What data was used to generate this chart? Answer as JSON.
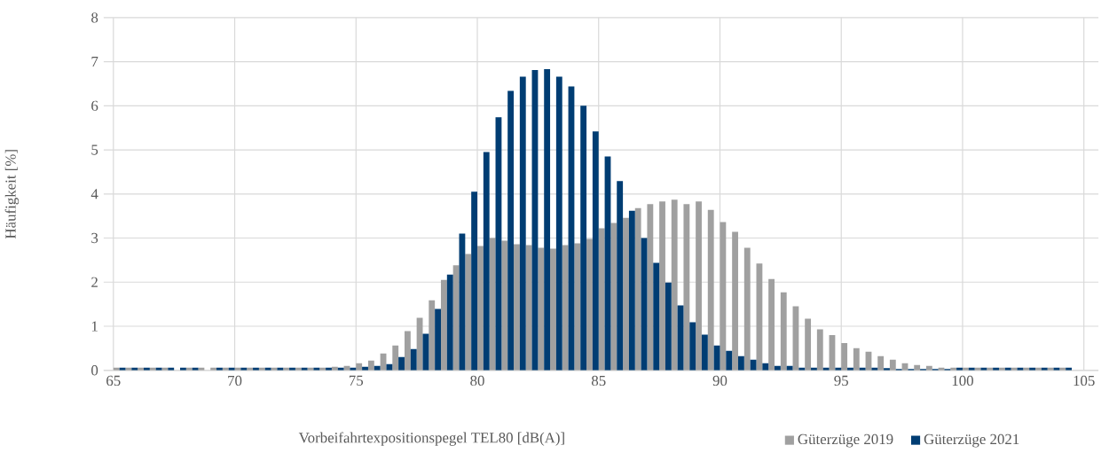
{
  "chart_data": {
    "type": "bar",
    "xlabel": "Vorbeifahrtexpositionspegel TEL80 [dB(A)]",
    "ylabel": "Häufigkeit [%]",
    "x": [
      65.25,
      65.75,
      66.25,
      66.75,
      67.25,
      67.75,
      68.25,
      68.75,
      69.25,
      69.75,
      70.25,
      70.75,
      71.25,
      71.75,
      72.25,
      72.75,
      73.25,
      73.75,
      74.25,
      74.75,
      75.25,
      75.75,
      76.25,
      76.75,
      77.25,
      77.75,
      78.25,
      78.75,
      79.25,
      79.75,
      80.25,
      80.75,
      81.25,
      81.75,
      82.25,
      82.75,
      83.25,
      83.75,
      84.25,
      84.75,
      85.25,
      85.75,
      86.25,
      86.75,
      87.25,
      87.75,
      88.25,
      88.75,
      89.25,
      89.75,
      90.25,
      90.75,
      91.25,
      91.75,
      92.25,
      92.75,
      93.25,
      93.75,
      94.25,
      94.75,
      95.25,
      95.75,
      96.25,
      96.75,
      97.25,
      97.75,
      98.25,
      98.75,
      99.25,
      99.75,
      100.25,
      100.75,
      101.25,
      101.75,
      102.25,
      102.75,
      103.25,
      103.75,
      104.25
    ],
    "series": [
      {
        "name": "Güterzüge 2019",
        "color": "#a0a0a0",
        "values": [
          0.06,
          0.06,
          0.06,
          0.06,
          0.06,
          0,
          0.06,
          0.06,
          0.06,
          0.06,
          0.06,
          0.06,
          0.06,
          0.06,
          0.06,
          0.06,
          0.06,
          0.06,
          0.08,
          0.1,
          0.16,
          0.22,
          0.38,
          0.56,
          0.89,
          1.19,
          1.59,
          2.05,
          2.38,
          2.64,
          2.82,
          3.0,
          2.94,
          2.86,
          2.84,
          2.78,
          2.76,
          2.84,
          2.88,
          2.98,
          3.22,
          3.34,
          3.46,
          3.68,
          3.77,
          3.83,
          3.87,
          3.77,
          3.83,
          3.64,
          3.36,
          3.14,
          2.78,
          2.42,
          2.07,
          1.77,
          1.45,
          1.17,
          0.93,
          0.8,
          0.62,
          0.5,
          0.42,
          0.32,
          0.24,
          0.16,
          0.12,
          0.1,
          0.06,
          0.06,
          0.06,
          0.06,
          0.06,
          0.06,
          0.06,
          0.06,
          0.06,
          0.06,
          0.06
        ]
      },
      {
        "name": "Güterzüge 2021",
        "color": "#003d73",
        "values": [
          0.06,
          0.06,
          0.06,
          0.06,
          0.06,
          0.06,
          0.06,
          0,
          0.06,
          0.06,
          0.06,
          0.06,
          0.06,
          0.06,
          0.06,
          0.06,
          0.06,
          0.06,
          0.06,
          0.06,
          0.08,
          0.1,
          0.14,
          0.3,
          0.48,
          0.83,
          1.39,
          2.17,
          3.1,
          4.05,
          4.95,
          5.74,
          6.34,
          6.66,
          6.81,
          6.83,
          6.66,
          6.44,
          6.0,
          5.42,
          4.85,
          4.29,
          3.62,
          3.0,
          2.44,
          1.99,
          1.47,
          1.09,
          0.81,
          0.56,
          0.44,
          0.32,
          0.24,
          0.16,
          0.1,
          0.1,
          0.06,
          0.06,
          0.06,
          0.06,
          0.06,
          0.06,
          0.06,
          0.05,
          0.03,
          0.03,
          0.03,
          0.03,
          0.03,
          0.06,
          0.06,
          0.06,
          0.06,
          0.06,
          0.06,
          0.06,
          0.06,
          0.06,
          0.06
        ]
      }
    ],
    "xlim": [
      64.6,
      105.6
    ],
    "ylim": [
      0,
      8
    ],
    "xticks": [
      65,
      70,
      75,
      80,
      85,
      90,
      95,
      100,
      105
    ],
    "yticks": [
      0,
      1,
      2,
      3,
      4,
      5,
      6,
      7,
      8
    ],
    "grid": true,
    "legend": "bottom"
  }
}
